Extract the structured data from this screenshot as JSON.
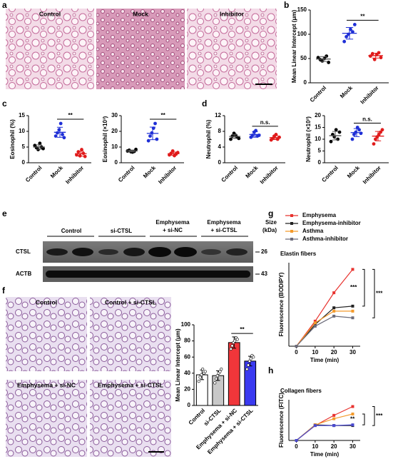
{
  "figure": {
    "panel_labels": [
      "a",
      "b",
      "c",
      "d",
      "e",
      "f",
      "g",
      "h"
    ],
    "images_a": [
      "Control",
      "Mock",
      "Inhibitor"
    ],
    "images_f": [
      "Control",
      "Control + si-CTSL",
      "Emphysema + si-NC",
      "Emphysema + si-CTSL"
    ],
    "blot": {
      "groups": [
        [
          "Control"
        ],
        [
          "si-CTSL"
        ],
        [
          "Emphysema",
          "+ si-NC"
        ],
        [
          "Emphysema",
          "+ si-CTSL"
        ]
      ],
      "size_label": [
        "Size",
        "(kDa)"
      ],
      "rows": [
        {
          "name": "CTSL",
          "size": 26
        },
        {
          "name": "ACTB",
          "size": 43
        }
      ]
    }
  },
  "chart_data": [
    {
      "type": "dot",
      "ylabel": "Mean Linear Intercept (μm)",
      "categories": [
        "Control",
        "Mock",
        "Inhibitor"
      ],
      "colors": [
        "#000000",
        "#1f2fd6",
        "#e01b1b"
      ],
      "points": [
        [
          52,
          48,
          45,
          50,
          55,
          42
        ],
        [
          85,
          95,
          100,
          110,
          105,
          120
        ],
        [
          55,
          60,
          48,
          58,
          62,
          52
        ]
      ],
      "means": [
        49,
        102,
        56
      ],
      "errors": [
        5,
        12,
        5
      ],
      "ylim": [
        0,
        150
      ],
      "yticks": [
        0,
        50,
        100,
        150
      ],
      "annotations": [
        {
          "text": "**",
          "categories": [
            "Mock",
            "Inhibitor"
          ]
        }
      ]
    },
    {
      "type": "dot",
      "ylabel": "Eosinophil (%)",
      "categories": [
        "Control",
        "Mock",
        "Inhibitor"
      ],
      "colors": [
        "#000000",
        "#1f2fd6",
        "#e01b1b"
      ],
      "points": [
        [
          5.5,
          4.8,
          4.2,
          6.2,
          5.0,
          4.5
        ],
        [
          8.5,
          9.5,
          10.5,
          12.5,
          9.0,
          8.0
        ],
        [
          2.5,
          3.5,
          2.2,
          4.2,
          3.0,
          2.0
        ]
      ],
      "means": [
        5.0,
        9.7,
        2.9
      ],
      "errors": [
        0.7,
        1.6,
        0.8
      ],
      "ylim": [
        0,
        15
      ],
      "yticks": [
        0,
        5,
        10,
        15
      ],
      "annotations": [
        {
          "text": "**",
          "categories": [
            "Mock",
            "Inhibitor"
          ]
        }
      ]
    },
    {
      "type": "dot",
      "ylabel": "Eosinophil (×10³)",
      "categories": [
        "Control",
        "Mock",
        "Inhibitor"
      ],
      "colors": [
        "#000000",
        "#1f2fd6",
        "#e01b1b"
      ],
      "points": [
        [
          7.5,
          8.0,
          7.0,
          6.8,
          7.2,
          8.5
        ],
        [
          14,
          17,
          19,
          22,
          25,
          15
        ],
        [
          5,
          6,
          7.5,
          4.5,
          5.5,
          6.5
        ]
      ],
      "means": [
        7.5,
        18.7,
        5.8
      ],
      "errors": [
        0.6,
        4,
        1
      ],
      "ylim": [
        0,
        30
      ],
      "yticks": [
        0,
        10,
        20,
        30
      ],
      "annotations": [
        {
          "text": "**",
          "categories": [
            "Mock",
            "Inhibitor"
          ]
        }
      ]
    },
    {
      "type": "dot",
      "ylabel": "Neutrophil (%)",
      "categories": [
        "Control",
        "Mock",
        "Inhibitor"
      ],
      "colors": [
        "#000000",
        "#1f2fd6",
        "#e01b1b"
      ],
      "points": [
        [
          6.0,
          6.8,
          7.5,
          7.0,
          6.5,
          6.2
        ],
        [
          6.5,
          7.0,
          7.8,
          8.2,
          6.8,
          7.0
        ],
        [
          5.8,
          6.2,
          6.8,
          7.2,
          6.0,
          6.5
        ]
      ],
      "means": [
        6.7,
        7.2,
        6.4
      ],
      "errors": [
        0.5,
        0.7,
        0.5
      ],
      "ylim": [
        0,
        12
      ],
      "yticks": [
        0,
        4,
        8,
        12
      ],
      "annotations": [
        {
          "text": "n.s.",
          "categories": [
            "Mock",
            "Inhibitor"
          ]
        }
      ]
    },
    {
      "type": "dot",
      "ylabel": "Neutrophil (×10³)",
      "categories": [
        "Control",
        "Mock",
        "Inhibitor"
      ],
      "colors": [
        "#000000",
        "#1f2fd6",
        "#e01b1b"
      ],
      "points": [
        [
          9,
          12,
          11,
          14,
          10,
          13
        ],
        [
          10,
          12,
          13,
          15,
          14,
          12.5
        ],
        [
          8,
          10,
          11,
          12,
          13,
          14
        ]
      ],
      "means": [
        11.5,
        12.8,
        11.3
      ],
      "errors": [
        1.8,
        1.7,
        2
      ],
      "ylim": [
        0,
        20
      ],
      "yticks": [
        0,
        5,
        10,
        15,
        20
      ],
      "annotations": [
        {
          "text": "n.s.",
          "categories": [
            "Mock",
            "Inhibitor"
          ]
        }
      ]
    },
    {
      "type": "bar",
      "ylabel": "Mean Linear Intercept (μm)",
      "categories": [
        "Control",
        "si-CTSL",
        "Emphysema + si-NC",
        "Emphysema + si-CTSL"
      ],
      "colors": [
        "#ffffff",
        "#c8c8c8",
        "#f0363a",
        "#3a3af0"
      ],
      "values": [
        38,
        37,
        78,
        55
      ],
      "errors": [
        6,
        6,
        7,
        6
      ],
      "points": [
        [
          30,
          35,
          38,
          45,
          40,
          42
        ],
        [
          28,
          33,
          37,
          40,
          42,
          45
        ],
        [
          70,
          74,
          78,
          80,
          84,
          82
        ],
        [
          45,
          50,
          55,
          58,
          62,
          60
        ]
      ],
      "ylim": [
        0,
        100
      ],
      "yticks": [
        0,
        20,
        40,
        60,
        80,
        100
      ],
      "annotations": [
        {
          "text": "**",
          "categories": [
            "Emphysema + si-NC",
            "Emphysema + si-CTSL"
          ]
        }
      ]
    },
    {
      "type": "line",
      "title": "Elastin fibers",
      "xlabel": "Time (min)",
      "ylabel": "Fluorescence (BODIPY)",
      "x": [
        0,
        10,
        20,
        30
      ],
      "xlim": [
        -4,
        34
      ],
      "xticks": [
        0,
        10,
        20,
        30
      ],
      "ylim": [
        0,
        500
      ],
      "legend": true,
      "series": [
        {
          "name": "Emphysema",
          "color": "#e8332f",
          "values": [
            0,
            150,
            320,
            460
          ]
        },
        {
          "name": "Emphysema-inhibitor",
          "color": "#222222",
          "values": [
            0,
            130,
            230,
            240
          ]
        },
        {
          "name": "Asthma",
          "color": "#f39a2b",
          "values": [
            0,
            140,
            210,
            210
          ]
        },
        {
          "name": "Asthma-inhibitor",
          "color": "#6b6b7a",
          "values": [
            0,
            120,
            180,
            170
          ]
        }
      ],
      "annotations": [
        {
          "text": "***",
          "series": [
            "Emphysema",
            "Emphysema-inhibitor"
          ]
        },
        {
          "text": "***",
          "series": [
            "Emphysema",
            "Asthma-inhibitor"
          ]
        }
      ]
    },
    {
      "type": "line",
      "title": "Collagen fibers",
      "xlabel": "Time (min)",
      "ylabel": "Fluorescence (FITC)",
      "x": [
        0,
        10,
        20,
        30
      ],
      "xlim": [
        -4,
        34
      ],
      "xticks": [
        0,
        10,
        20,
        30
      ],
      "ylim": [
        0,
        300
      ],
      "legend": false,
      "series": [
        {
          "name": "Emphysema",
          "color": "#e8332f",
          "values": [
            0,
            110,
            185,
            250
          ]
        },
        {
          "name": "Emphysema-inhibitor",
          "color": "#222222",
          "values": [
            0,
            115,
            110,
            110
          ]
        },
        {
          "name": "Asthma",
          "color": "#f39a2b",
          "values": [
            0,
            115,
            160,
            195
          ]
        },
        {
          "name": "Asthma-inhibitor",
          "color": "#4a4ad0",
          "values": [
            0,
            110,
            110,
            115
          ]
        }
      ],
      "annotations": [
        {
          "text": "**",
          "series": [
            "Asthma",
            "Asthma-inhibitor"
          ]
        },
        {
          "text": "***",
          "series": [
            "Emphysema",
            "Emphysema-inhibitor"
          ]
        }
      ]
    }
  ]
}
